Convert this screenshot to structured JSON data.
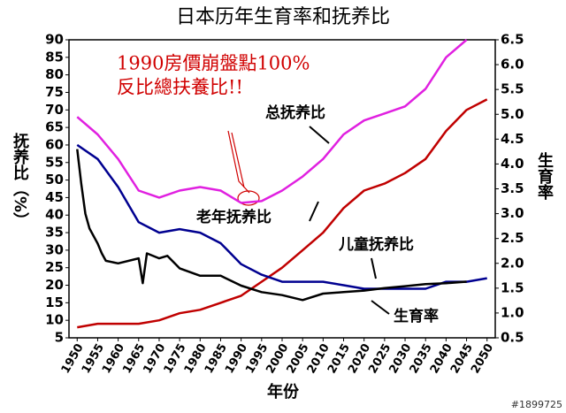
{
  "chart_data": {
    "type": "line",
    "title": "日本历年生育率和抚养比",
    "y_label": "抚养比（%）",
    "y2_label": "生育率",
    "x_label": "年份",
    "annotations": [
      "1990房價崩盤點100%",
      "反比總扶養比!!",
      "总抚养比",
      "老年抚养比",
      "儿童抚养比",
      "生育率"
    ],
    "watermark": "#1899725",
    "x": [
      1950,
      1955,
      1960,
      1965,
      1970,
      1975,
      1980,
      1985,
      1990,
      1995,
      2000,
      2005,
      2010,
      2015,
      2020,
      2025,
      2030,
      2035,
      2040,
      2045,
      2050
    ],
    "xlim": [
      1948,
      2052
    ],
    "xticks": [
      1950,
      1955,
      1960,
      1965,
      1970,
      1975,
      1980,
      1985,
      1990,
      1995,
      2000,
      2005,
      2010,
      2015,
      2020,
      2025,
      2030,
      2035,
      2040,
      2045,
      2050
    ],
    "ylim": [
      5,
      90
    ],
    "yticks": [
      5,
      10,
      15,
      20,
      25,
      30,
      35,
      40,
      45,
      50,
      55,
      60,
      65,
      70,
      75,
      80,
      85,
      90
    ],
    "y2lim": [
      0.5,
      6.5
    ],
    "y2ticks": [
      0.5,
      {
        "value": 1,
        "label": "1.0"
      },
      1.5,
      {
        "value": 2,
        "label": "2.0"
      },
      2.5,
      {
        "value": 3,
        "label": "3.0"
      },
      3.5,
      {
        "value": 4,
        "label": "4.0"
      },
      4.5,
      {
        "value": 5,
        "label": "5.0"
      },
      5.5,
      {
        "value": 6,
        "label": "6.0"
      },
      6.5
    ],
    "series": [
      {
        "name": "总抚养比",
        "color": "#e020e0",
        "values": [
          68,
          63,
          56,
          47,
          45,
          47,
          48,
          47,
          43.5,
          44,
          47,
          51,
          56,
          63,
          67,
          69,
          71,
          76,
          85,
          90,
          null
        ]
      },
      {
        "name": "老年抚养比",
        "color": "#c00000",
        "values": [
          8,
          9,
          9,
          9,
          10,
          12,
          13,
          15,
          17,
          21,
          25,
          30,
          35,
          42,
          47,
          49,
          52,
          56,
          64,
          70,
          73
        ]
      },
      {
        "name": "儿童抚养比",
        "color": "#000090",
        "values": [
          60,
          56,
          48,
          38,
          35,
          36,
          35,
          32,
          26,
          23,
          21,
          21,
          21,
          20,
          19,
          19,
          19,
          19,
          21,
          21,
          22
        ]
      },
      {
        "name": "生育率",
        "color": "#000000",
        "axis": "y2",
        "x": [
          1950,
          1951,
          1952,
          1953,
          1955,
          1956,
          1957,
          1960,
          1965,
          1966,
          1967,
          1970,
          1972,
          1975,
          1980,
          1985,
          1990,
          1995,
          2000,
          2005,
          2010,
          2015,
          2020,
          2025,
          2030,
          2035,
          2040,
          2045
        ],
        "values": [
          4.3,
          3.6,
          3.0,
          2.7,
          2.4,
          2.2,
          2.05,
          2.0,
          2.1,
          1.6,
          2.2,
          2.1,
          2.15,
          1.9,
          1.75,
          1.75,
          1.55,
          1.42,
          1.36,
          1.26,
          1.39,
          1.42,
          1.45,
          1.5,
          1.54,
          1.58,
          1.6,
          1.63
        ]
      }
    ]
  }
}
